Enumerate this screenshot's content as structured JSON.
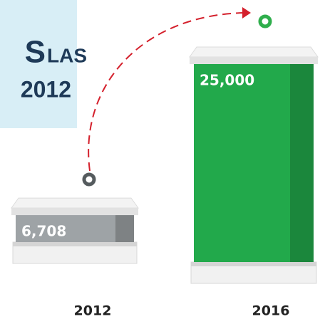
{
  "chart_data": {
    "type": "bar",
    "annotations": [
      "S",
      "LAS",
      "2012"
    ],
    "categories": [
      "2012",
      "2016"
    ],
    "values": [
      6708,
      25000
    ],
    "value_labels": [
      "6,708",
      "25,000"
    ],
    "colors": [
      "#9ea3a6",
      "#22a94b"
    ]
  }
}
